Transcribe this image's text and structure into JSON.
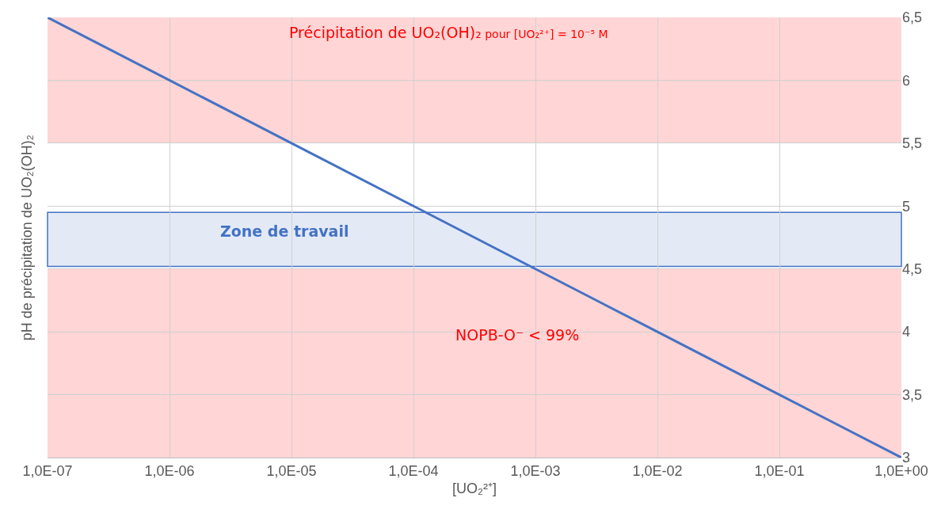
{
  "chart_data": {
    "type": "line",
    "xlabel": "[UO₂²⁺]",
    "ylabel": "pH de précipitation de UO₂(OH)₂",
    "categories": [
      "1,0E-07",
      "1,0E-06",
      "1,0E-05",
      "1,0E-04",
      "1,0E-03",
      "1,0E-02",
      "1,0E-01",
      "1,0E+00"
    ],
    "series": [
      {
        "color": "#4472c4",
        "values": [
          6.5,
          6,
          5.5,
          5,
          4.5,
          4,
          3.5,
          3
        ]
      }
    ],
    "ylim": [
      3,
      6.5
    ],
    "yticks": [
      3,
      {
        "value": 3.5,
        "label": "3,5"
      },
      4,
      {
        "value": 4.5,
        "label": "4,5"
      },
      5,
      {
        "value": 5.5,
        "label": "5,5"
      },
      6,
      {
        "value": 6.5,
        "label": "6,5"
      }
    ],
    "bands": [
      {
        "axis": "y",
        "from": 5.5,
        "to": 6.5,
        "label": "Précipitation de UO₂(OH)₂ pour [UO₂²⁺] = 10⁻⁵ M",
        "color": "#ffc7c7"
      },
      {
        "axis": "y",
        "from": 4.52,
        "to": 4.95,
        "label": "Zone de travail",
        "color": "#dae3f3"
      },
      {
        "axis": "y",
        "from": 3,
        "to": 4.5,
        "label": "NOPB-O⁻ < 99%",
        "color": "#ffc7c7"
      }
    ],
    "grid": true,
    "marker": "none",
    "line_style": "solid"
  }
}
